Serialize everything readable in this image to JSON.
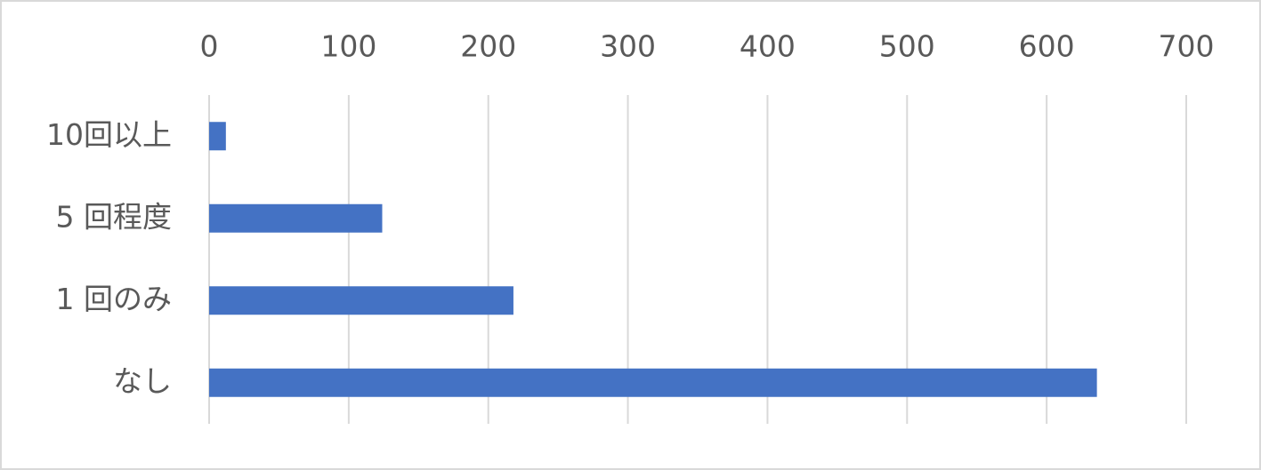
{
  "chart_data": {
    "type": "bar",
    "orientation": "horizontal",
    "categories": [
      "10回以上",
      "5 回程度",
      "1 回のみ",
      "なし"
    ],
    "values": [
      12,
      124,
      218,
      636
    ],
    "color": "#4472c4",
    "xlim": [
      0,
      700
    ],
    "xticks": [
      0,
      100,
      200,
      300,
      400,
      500,
      600,
      700
    ],
    "grid": true
  }
}
